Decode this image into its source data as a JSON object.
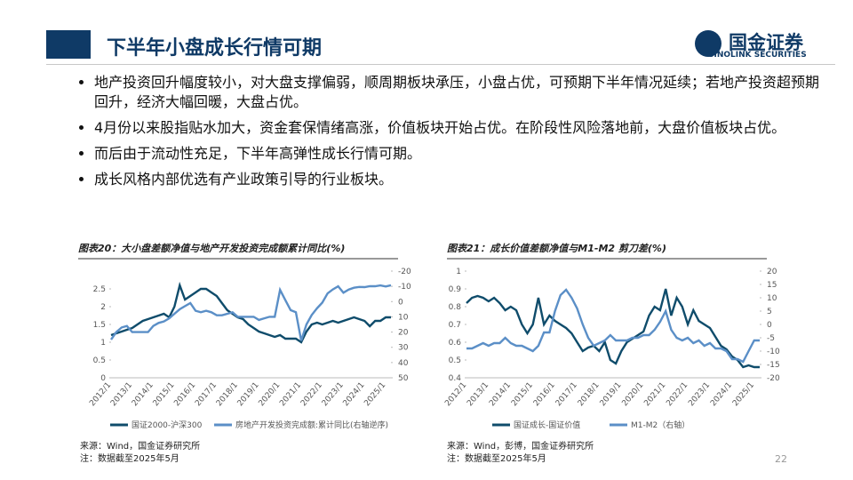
{
  "header": {
    "title": "下半年小盘成长行情可期",
    "logo": "国金证券",
    "logo_sub": "SINOLINK SECURITIES"
  },
  "bullets": [
    "地产投资回升幅度较小，对大盘支撑偏弱，顺周期板块承压，小盘占优，可预期下半年情况延续；若地产投资超预期回升，经济大幅回暖，大盘占优。",
    "4月份以来股指贴水加大，资金套保情绪高涨，价值板块开始占优。在阶段性风险落地前，大盘价值板块占优。",
    "而后由于流动性充足，下半年高弹性成长行情可期。",
    "成长风格内部优选有产业政策引导的行业板块。"
  ],
  "notes": [
    {
      "source": "来源：Wind，国金证券研究所",
      "date": "注：数据截至2025年5月"
    },
    {
      "source": "来源：Wind，彭博，国金证券研究所",
      "date": "注：数据截至2025年5月"
    }
  ],
  "page": "22",
  "chart_data": [
    {
      "type": "line",
      "title": "图表20：大小盘差额净值与地产开发投资完成额累计同比(%)",
      "categories": [
        "2012/1",
        null,
        null,
        null,
        "2013/1",
        null,
        null,
        null,
        "2014/1",
        null,
        null,
        null,
        "2015/1",
        null,
        null,
        null,
        "2016/1",
        null,
        null,
        null,
        "2017/1",
        null,
        null,
        null,
        "2018/1",
        null,
        null,
        null,
        "2019/1",
        null,
        null,
        null,
        "2020/1",
        null,
        null,
        null,
        "2021/1",
        null,
        null,
        null,
        "2022/1",
        null,
        null,
        null,
        "2023/1",
        null,
        null,
        null,
        "2024/1",
        null,
        null,
        null,
        "2025/1",
        null
      ],
      "series": [
        {
          "name": "国证2000-沪深300",
          "color": "#0f4c6b",
          "values": [
            1.2,
            1.25,
            1.3,
            1.35,
            1.4,
            1.5,
            1.6,
            1.65,
            1.7,
            1.75,
            1.8,
            1.7,
            2.0,
            2.6,
            2.2,
            2.3,
            2.4,
            2.5,
            2.5,
            2.4,
            2.3,
            2.1,
            1.9,
            1.8,
            1.7,
            1.65,
            1.5,
            1.4,
            1.3,
            1.25,
            1.2,
            1.15,
            1.2,
            1.1,
            1.1,
            1.1,
            1.0,
            1.3,
            1.5,
            1.55,
            1.5,
            1.55,
            1.6,
            1.55,
            1.6,
            1.65,
            1.7,
            1.65,
            1.6,
            1.45,
            1.6,
            1.6,
            1.7,
            1.7
          ]
        },
        {
          "name": "房地产开发投资完成额:累计同比(右轴逆序)",
          "color": "#5b8fc7",
          "axis": "y2",
          "values": [
            25,
            20,
            17,
            16,
            20,
            20,
            20,
            20,
            16,
            14,
            13,
            11,
            8,
            5,
            3,
            1,
            6,
            7,
            6,
            7,
            9,
            9,
            8,
            7,
            10,
            10,
            10,
            10,
            12,
            11,
            10,
            10,
            -7.7,
            -1,
            5.6,
            7,
            25.6,
            15,
            8.8,
            4.4,
            0.7,
            -5.4,
            -8,
            -10,
            -5.8,
            -7.9,
            -9.1,
            -9.6,
            -9.5,
            -10.1,
            -10.1,
            -10.6,
            -9.9,
            -10.7
          ]
        }
      ],
      "ylim": [
        0,
        3
      ],
      "yticks": [
        0,
        0.5,
        1,
        1.5,
        2,
        2.5
      ],
      "y2lim": [
        -20,
        50
      ],
      "y2ticks": [
        -20,
        -10,
        0,
        10,
        20,
        30,
        40,
        50
      ],
      "y2_inverted": true
    },
    {
      "type": "line",
      "title": "图表21：成长价值差额净值与M1-M2 剪刀差(%)",
      "categories": [
        "2012/1",
        null,
        null,
        null,
        "2013/1",
        null,
        null,
        null,
        "2014/1",
        null,
        null,
        null,
        "2015/1",
        null,
        null,
        null,
        "2016/1",
        null,
        null,
        null,
        "2017/1",
        null,
        null,
        null,
        "2018/1",
        null,
        null,
        null,
        "2019/1",
        null,
        null,
        null,
        "2020/1",
        null,
        null,
        null,
        "2021/1",
        null,
        null,
        null,
        "2022/1",
        null,
        null,
        null,
        "2023/1",
        null,
        null,
        null,
        "2024/1",
        null,
        null,
        null,
        "2025/1",
        null
      ],
      "series": [
        {
          "name": "国证成长-国证价值",
          "color": "#0f4c6b",
          "values": [
            0.82,
            0.85,
            0.86,
            0.85,
            0.83,
            0.85,
            0.82,
            0.78,
            0.8,
            0.78,
            0.7,
            0.65,
            0.7,
            0.85,
            0.7,
            0.75,
            0.72,
            0.7,
            0.68,
            0.65,
            0.6,
            0.55,
            0.57,
            0.58,
            0.55,
            0.6,
            0.5,
            0.48,
            0.55,
            0.6,
            0.62,
            0.64,
            0.66,
            0.75,
            0.8,
            0.78,
            0.9,
            0.75,
            0.85,
            0.8,
            0.7,
            0.78,
            0.72,
            0.7,
            0.68,
            0.63,
            0.58,
            0.56,
            0.52,
            0.5,
            0.46,
            0.47,
            0.46,
            0.46
          ]
        },
        {
          "name": "M1-M2（右轴）",
          "color": "#5b8fc7",
          "axis": "y2",
          "values": [
            -9,
            -9,
            -8,
            -7,
            -8,
            -7,
            -7,
            -5,
            -7,
            -8,
            -8,
            -9,
            -10,
            -8,
            -3,
            -3,
            5,
            11,
            13,
            10,
            6,
            0,
            -5,
            -8,
            -7,
            -6,
            -4,
            -6,
            -6,
            -6,
            -5,
            -5,
            -4,
            -4,
            -2,
            1,
            5,
            -2,
            -5,
            -6,
            -5,
            -7,
            -6,
            -8,
            -7,
            -9,
            -9,
            -10,
            -13,
            -13,
            -14,
            -10,
            -6,
            -6
          ]
        }
      ],
      "ylim": [
        0.4,
        1
      ],
      "yticks": [
        0.4,
        0.5,
        0.6,
        0.7,
        0.8,
        0.9,
        1
      ],
      "y2lim": [
        -20,
        20
      ],
      "y2ticks": [
        -20,
        -15,
        -10,
        -5,
        0,
        5,
        10,
        15,
        20
      ]
    }
  ]
}
